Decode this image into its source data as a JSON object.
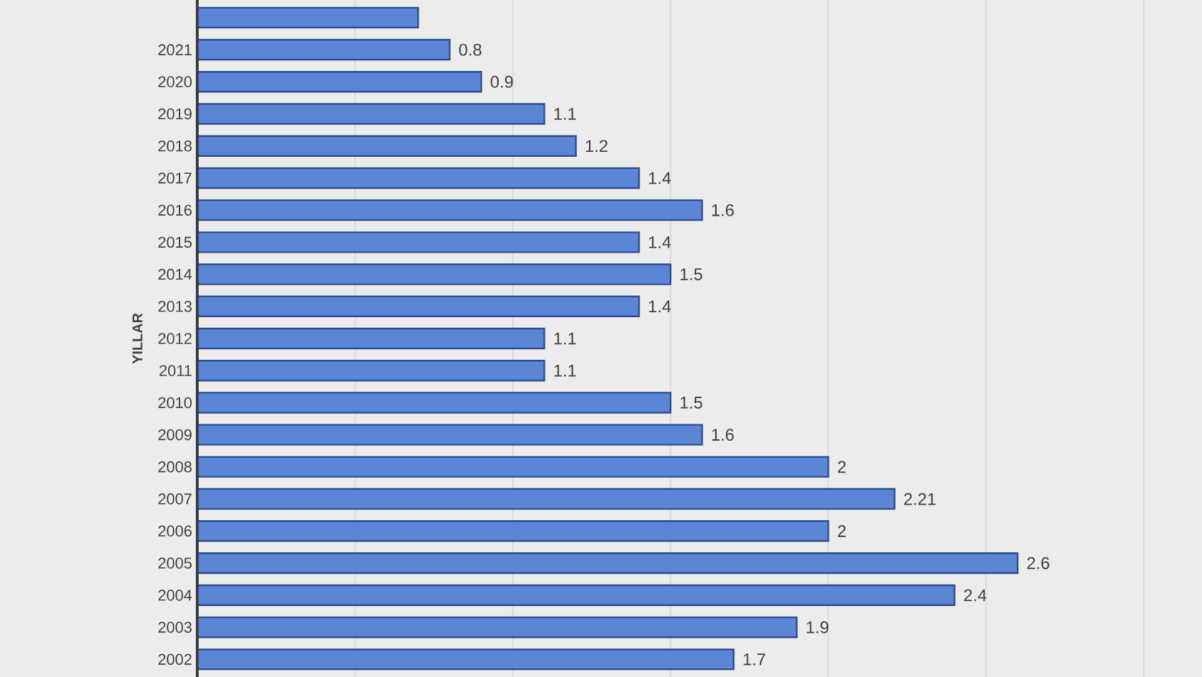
{
  "chart_data": {
    "type": "bar",
    "orientation": "horizontal",
    "ylabel": "YILLAR",
    "categories": [
      null,
      "2021",
      "2020",
      "2019",
      "2018",
      "2017",
      "2016",
      "2015",
      "2014",
      "2013",
      "2012",
      "2011",
      "2010",
      "2009",
      "2008",
      "2007",
      "2006",
      "2005",
      "2004",
      "2003",
      "2002"
    ],
    "values": [
      0.7,
      0.8,
      0.9,
      1.1,
      1.2,
      1.4,
      1.6,
      1.4,
      1.5,
      1.4,
      1.1,
      1.1,
      1.5,
      1.6,
      2,
      2.21,
      2,
      2.6,
      2.4,
      1.9,
      1.7
    ],
    "value_labels": [
      null,
      "0.8",
      "0.9",
      "1.1",
      "1.2",
      "1.4",
      "1.6",
      "1.4",
      "1.5",
      "1.4",
      "1.1",
      "1.1",
      "1.5",
      "1.6",
      "2",
      "2.21",
      "2",
      "2.6",
      "2.4",
      "1.9",
      "1.7"
    ],
    "color": "#5b86d6",
    "xlim": [
      0,
      3
    ],
    "xticks": [
      {
        "value": 0,
        "label": null
      },
      {
        "value": 0.5,
        "label": null
      },
      {
        "value": 1,
        "label": null
      },
      {
        "value": 1.5,
        "label": null
      },
      {
        "value": 2,
        "label": null
      },
      {
        "value": 2.5,
        "label": null
      },
      {
        "value": 3,
        "label": null
      }
    ],
    "grid": "x",
    "tick_labels": "y"
  }
}
